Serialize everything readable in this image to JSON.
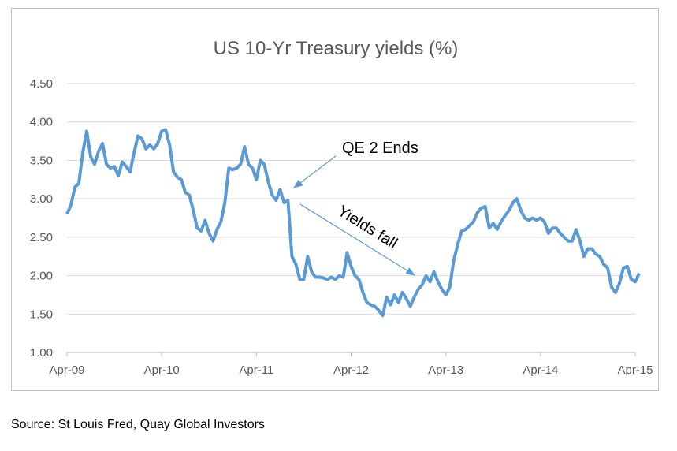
{
  "chart_data": {
    "type": "line",
    "title": "US 10-Yr Treasury yields (%)",
    "xlabel": "",
    "ylabel": "",
    "ylim": [
      1.0,
      4.5
    ],
    "yticks": [
      "1.00",
      "1.50",
      "2.00",
      "2.50",
      "3.00",
      "3.50",
      "4.00",
      "4.50"
    ],
    "xticks": [
      {
        "label": "Apr-09",
        "date": "2009-04-01"
      },
      {
        "label": "Apr-10",
        "date": "2010-04-01"
      },
      {
        "label": "Apr-11",
        "date": "2011-04-01"
      },
      {
        "label": "Apr-12",
        "date": "2012-04-01"
      },
      {
        "label": "Apr-13",
        "date": "2013-04-01"
      },
      {
        "label": "Apr-14",
        "date": "2014-04-01"
      },
      {
        "label": "Apr-15",
        "date": "2015-04-01"
      }
    ],
    "grid": true,
    "line_color": "#5b9bd5",
    "annotations": [
      {
        "text": "QE 2 Ends",
        "date": "2011-06-15",
        "value": 3.1
      },
      {
        "text": "Yields fall",
        "from_date": "2011-06-30",
        "to_date": "2012-07-30",
        "to_value": 2.0
      }
    ],
    "series": [
      {
        "points": [
          [
            "2009-04-01",
            2.8
          ],
          [
            "2009-04-16",
            2.92
          ],
          [
            "2009-05-01",
            3.15
          ],
          [
            "2009-05-16",
            3.2
          ],
          [
            "2009-06-01",
            3.6
          ],
          [
            "2009-06-16",
            3.88
          ],
          [
            "2009-07-01",
            3.55
          ],
          [
            "2009-07-16",
            3.45
          ],
          [
            "2009-08-01",
            3.62
          ],
          [
            "2009-08-16",
            3.72
          ],
          [
            "2009-09-01",
            3.45
          ],
          [
            "2009-09-16",
            3.4
          ],
          [
            "2009-10-01",
            3.42
          ],
          [
            "2009-10-16",
            3.3
          ],
          [
            "2009-11-01",
            3.48
          ],
          [
            "2009-11-16",
            3.42
          ],
          [
            "2009-12-01",
            3.35
          ],
          [
            "2009-12-16",
            3.6
          ],
          [
            "2010-01-01",
            3.82
          ],
          [
            "2010-01-16",
            3.78
          ],
          [
            "2010-02-01",
            3.65
          ],
          [
            "2010-02-16",
            3.7
          ],
          [
            "2010-03-01",
            3.65
          ],
          [
            "2010-03-16",
            3.72
          ],
          [
            "2010-04-01",
            3.88
          ],
          [
            "2010-04-16",
            3.9
          ],
          [
            "2010-05-01",
            3.7
          ],
          [
            "2010-05-16",
            3.35
          ],
          [
            "2010-06-01",
            3.28
          ],
          [
            "2010-06-16",
            3.25
          ],
          [
            "2010-07-01",
            3.08
          ],
          [
            "2010-07-16",
            3.05
          ],
          [
            "2010-08-01",
            2.85
          ],
          [
            "2010-08-16",
            2.62
          ],
          [
            "2010-09-01",
            2.58
          ],
          [
            "2010-09-16",
            2.72
          ],
          [
            "2010-10-01",
            2.55
          ],
          [
            "2010-10-16",
            2.45
          ],
          [
            "2010-11-01",
            2.6
          ],
          [
            "2010-11-16",
            2.7
          ],
          [
            "2010-12-01",
            2.95
          ],
          [
            "2010-12-16",
            3.4
          ],
          [
            "2011-01-01",
            3.38
          ],
          [
            "2011-01-16",
            3.4
          ],
          [
            "2011-02-01",
            3.45
          ],
          [
            "2011-02-16",
            3.68
          ],
          [
            "2011-03-01",
            3.45
          ],
          [
            "2011-03-16",
            3.4
          ],
          [
            "2011-04-01",
            3.25
          ],
          [
            "2011-04-16",
            3.5
          ],
          [
            "2011-05-01",
            3.45
          ],
          [
            "2011-05-16",
            3.22
          ],
          [
            "2011-06-01",
            3.05
          ],
          [
            "2011-06-16",
            2.98
          ],
          [
            "2011-07-01",
            3.12
          ],
          [
            "2011-07-16",
            2.95
          ],
          [
            "2011-08-01",
            2.98
          ],
          [
            "2011-08-16",
            2.25
          ],
          [
            "2011-09-01",
            2.15
          ],
          [
            "2011-09-16",
            1.95
          ],
          [
            "2011-10-01",
            1.95
          ],
          [
            "2011-10-16",
            2.25
          ],
          [
            "2011-11-01",
            2.05
          ],
          [
            "2011-11-16",
            1.98
          ],
          [
            "2011-12-01",
            1.98
          ],
          [
            "2011-12-16",
            1.97
          ],
          [
            "2012-01-01",
            1.95
          ],
          [
            "2012-01-16",
            1.98
          ],
          [
            "2012-02-01",
            1.95
          ],
          [
            "2012-02-16",
            2.0
          ],
          [
            "2012-03-01",
            1.98
          ],
          [
            "2012-03-16",
            2.3
          ],
          [
            "2012-04-01",
            2.12
          ],
          [
            "2012-04-16",
            2.0
          ],
          [
            "2012-05-01",
            1.95
          ],
          [
            "2012-05-16",
            1.78
          ],
          [
            "2012-06-01",
            1.65
          ],
          [
            "2012-06-16",
            1.62
          ],
          [
            "2012-07-01",
            1.6
          ],
          [
            "2012-07-16",
            1.55
          ],
          [
            "2012-08-01",
            1.48
          ],
          [
            "2012-08-16",
            1.72
          ],
          [
            "2012-09-01",
            1.62
          ],
          [
            "2012-09-16",
            1.75
          ],
          [
            "2012-10-01",
            1.65
          ],
          [
            "2012-10-16",
            1.78
          ],
          [
            "2012-11-01",
            1.7
          ],
          [
            "2012-11-16",
            1.6
          ],
          [
            "2012-12-01",
            1.72
          ],
          [
            "2012-12-16",
            1.82
          ],
          [
            "2013-01-01",
            1.88
          ],
          [
            "2013-01-16",
            2.0
          ],
          [
            "2013-02-01",
            1.92
          ],
          [
            "2013-02-16",
            2.05
          ],
          [
            "2013-03-01",
            1.92
          ],
          [
            "2013-03-16",
            1.82
          ],
          [
            "2013-04-01",
            1.75
          ],
          [
            "2013-04-16",
            1.85
          ],
          [
            "2013-05-01",
            2.2
          ],
          [
            "2013-05-16",
            2.4
          ],
          [
            "2013-06-01",
            2.58
          ],
          [
            "2013-06-16",
            2.6
          ],
          [
            "2013-07-01",
            2.65
          ],
          [
            "2013-07-16",
            2.7
          ],
          [
            "2013-08-01",
            2.82
          ],
          [
            "2013-08-16",
            2.88
          ],
          [
            "2013-09-01",
            2.9
          ],
          [
            "2013-09-16",
            2.62
          ],
          [
            "2013-10-01",
            2.68
          ],
          [
            "2013-10-16",
            2.6
          ],
          [
            "2013-11-01",
            2.7
          ],
          [
            "2013-11-16",
            2.78
          ],
          [
            "2013-12-01",
            2.85
          ],
          [
            "2013-12-16",
            2.95
          ],
          [
            "2014-01-01",
            3.0
          ],
          [
            "2014-01-16",
            2.85
          ],
          [
            "2014-02-01",
            2.75
          ],
          [
            "2014-02-16",
            2.72
          ],
          [
            "2014-03-01",
            2.75
          ],
          [
            "2014-03-16",
            2.72
          ],
          [
            "2014-04-01",
            2.75
          ],
          [
            "2014-04-16",
            2.7
          ],
          [
            "2014-05-01",
            2.55
          ],
          [
            "2014-05-16",
            2.62
          ],
          [
            "2014-06-01",
            2.62
          ],
          [
            "2014-06-16",
            2.55
          ],
          [
            "2014-07-01",
            2.5
          ],
          [
            "2014-07-16",
            2.45
          ],
          [
            "2014-08-01",
            2.45
          ],
          [
            "2014-08-16",
            2.6
          ],
          [
            "2014-09-01",
            2.45
          ],
          [
            "2014-09-16",
            2.25
          ],
          [
            "2014-10-01",
            2.35
          ],
          [
            "2014-10-16",
            2.35
          ],
          [
            "2014-11-01",
            2.28
          ],
          [
            "2014-11-16",
            2.25
          ],
          [
            "2014-12-01",
            2.15
          ],
          [
            "2014-12-16",
            2.1
          ],
          [
            "2015-01-01",
            1.85
          ],
          [
            "2015-01-16",
            1.78
          ],
          [
            "2015-02-01",
            1.9
          ],
          [
            "2015-02-16",
            2.1
          ],
          [
            "2015-03-01",
            2.12
          ],
          [
            "2015-03-16",
            1.95
          ],
          [
            "2015-04-01",
            1.92
          ],
          [
            "2015-04-16",
            2.03
          ]
        ]
      }
    ]
  },
  "source": "Source: St Louis Fred, Quay Global Investors"
}
